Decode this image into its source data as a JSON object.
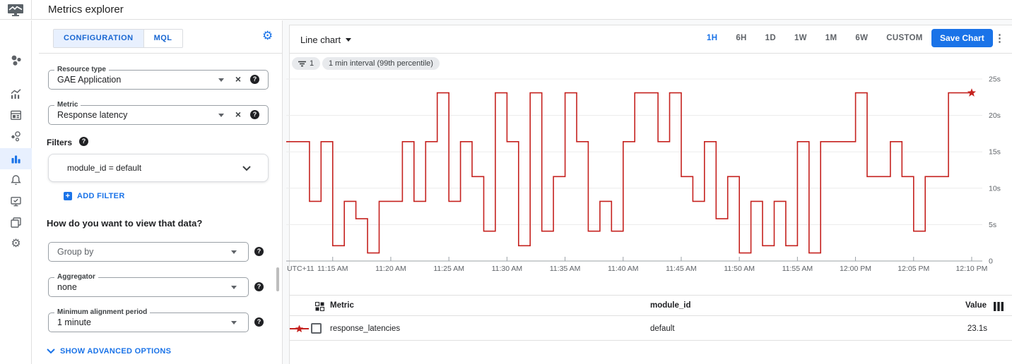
{
  "topbar": {
    "title": "Metrics explorer"
  },
  "sidebar": {
    "icons": [
      "monitoring-overview-icon",
      "metrics-icon",
      "dashboards-icon",
      "services-icon",
      "metrics-explorer-icon",
      "alerting-icon",
      "uptime-checks-icon",
      "groups-icon",
      "settings-icon"
    ],
    "selected": "metrics-explorer-icon"
  },
  "config_panel": {
    "tabs": [
      {
        "label": "CONFIGURATION",
        "selected": true
      },
      {
        "label": "MQL",
        "selected": false
      }
    ],
    "resource_type": {
      "label": "Resource type",
      "value": "GAE Application"
    },
    "metric": {
      "label": "Metric",
      "value": "Response latency"
    },
    "filters_label": "Filters",
    "filter_value": "module_id = default",
    "add_filter_label": "ADD FILTER",
    "question": "How do you want to view that data?",
    "group_by": {
      "placeholder": "Group by"
    },
    "aggregator": {
      "label": "Aggregator",
      "value": "none"
    },
    "min_alignment": {
      "label": "Minimum alignment period",
      "value": "1 minute"
    },
    "show_advanced_label": "SHOW ADVANCED OPTIONS"
  },
  "chart_header": {
    "chart_type_label": "Line chart",
    "time_ranges": [
      "1H",
      "6H",
      "1D",
      "1W",
      "1M",
      "6W",
      "CUSTOM"
    ],
    "selected_range": "1H",
    "save_button_label": "Save Chart"
  },
  "chips": [
    {
      "icon": "filter-list-icon",
      "label": "1"
    },
    {
      "label": "1 min interval (99th percentile)"
    }
  ],
  "chart_data": {
    "type": "line",
    "line_style": "step-after",
    "unit": "s",
    "ylim": [
      0,
      26
    ],
    "y_tick_values": [
      0,
      5,
      10,
      15,
      20,
      25
    ],
    "y_ticks": [
      "0",
      "5s",
      "10s",
      "15s",
      "20s",
      "25s"
    ],
    "x_ticks": [
      "UTC+11",
      "11:15 AM",
      "11:20 AM",
      "11:25 AM",
      "11:30 AM",
      "11:35 AM",
      "11:40 AM",
      "11:45 AM",
      "11:50 AM",
      "11:55 AM",
      "12:00 PM",
      "12:05 PM",
      "12:10 PM"
    ],
    "x_start": "11:11 AM",
    "x_interval_minutes": 1,
    "grid": true,
    "end_marker": "star",
    "series": [
      {
        "name": "response_latencies",
        "color": "#C5221F",
        "values": [
          16.4,
          16.4,
          8.2,
          16.4,
          2.1,
          8.2,
          5.8,
          1.1,
          8.2,
          8.2,
          16.4,
          8.2,
          16.4,
          23.1,
          8.2,
          16.4,
          11.6,
          4.1,
          23.1,
          16.4,
          2.1,
          23.1,
          4.1,
          11.6,
          23.1,
          16.4,
          4.1,
          8.2,
          4.1,
          16.4,
          23.1,
          23.1,
          16.4,
          23.1,
          11.6,
          8.2,
          16.4,
          5.8,
          11.6,
          1.1,
          8.2,
          2.1,
          8.2,
          2.1,
          16.4,
          1.1,
          16.4,
          16.4,
          16.4,
          23.1,
          11.6,
          11.6,
          16.4,
          11.6,
          4.1,
          11.6,
          11.6,
          23.1,
          23.1
        ],
        "current_value": "23.1s"
      }
    ]
  },
  "table": {
    "columns": [
      "Metric",
      "module_id",
      "Value"
    ],
    "rows": [
      {
        "metric": "response_latencies",
        "module_id": "default",
        "value": "23.1s"
      }
    ]
  },
  "colors": {
    "accent": "#1A73E8",
    "accent_bg": "#E8F0FE",
    "series_red": "#C5221F"
  }
}
